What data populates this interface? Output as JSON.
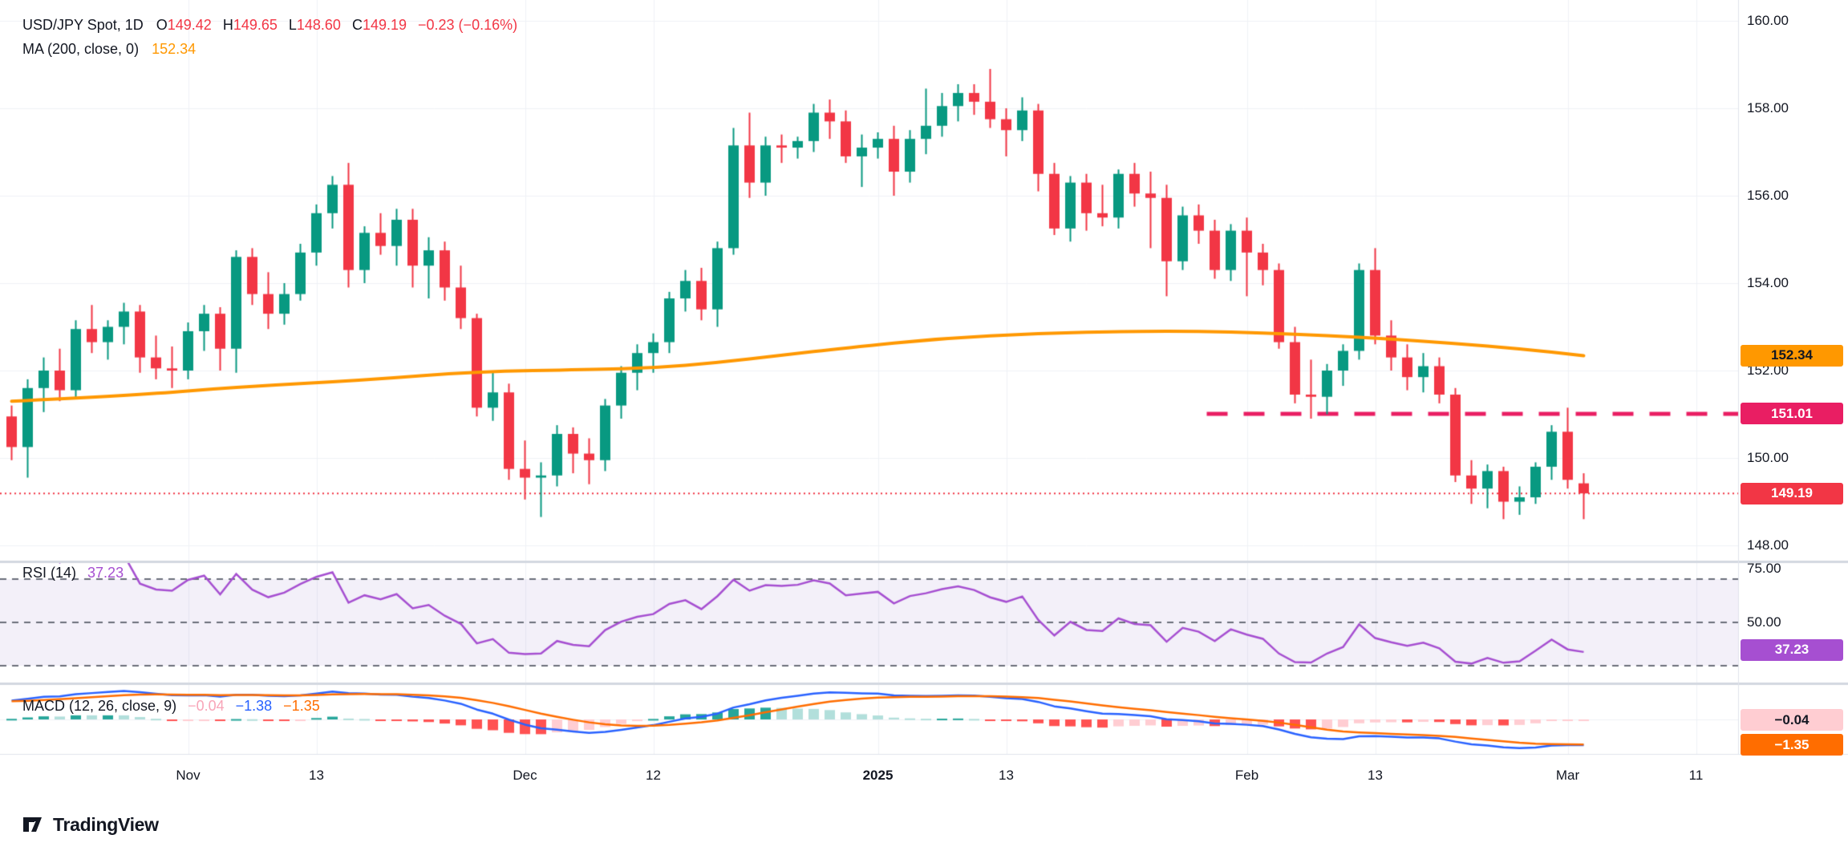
{
  "header": {
    "symbol": "USD/JPY Spot, 1D",
    "ohlc": [
      [
        "O",
        "149.42"
      ],
      [
        "H",
        "149.65"
      ],
      [
        "L",
        "148.60"
      ],
      [
        "C",
        "149.19"
      ]
    ],
    "change": "−0.23 (−0.16%)",
    "ma_label": "MA (200, close, 0)",
    "ma_value": "152.34"
  },
  "rsi_pane": {
    "label": "RSI (14)",
    "value": "37.23",
    "ticks": [
      {
        "text": "75.00",
        "v": 75
      },
      {
        "text": "50.00",
        "v": 50
      }
    ],
    "badge": {
      "text": "37.23",
      "v": 37.23,
      "bg": "#A64FD1",
      "fg": "#ffffff"
    },
    "dashed_levels": [
      70,
      50,
      30
    ],
    "band": [
      30,
      70
    ]
  },
  "macd_pane": {
    "label": "MACD (12, 26, close, 9)",
    "hist_value": "−0.04",
    "macd_value": "−1.38",
    "signal_value": "−1.35",
    "badges": [
      {
        "text": "−0.04",
        "v": -0.04,
        "bg": "#FFCDD2",
        "fg": "#131722"
      },
      {
        "text": "−1.35",
        "v": -1.35,
        "bg": "#FF6D00",
        "fg": "#ffffff"
      }
    ]
  },
  "price_axis": {
    "ticks": [
      {
        "text": "160.00",
        "v": 160
      },
      {
        "text": "158.00",
        "v": 158
      },
      {
        "text": "156.00",
        "v": 156
      },
      {
        "text": "154.00",
        "v": 154
      },
      {
        "text": "152.00",
        "v": 152
      },
      {
        "text": "150.00",
        "v": 150
      },
      {
        "text": "148.00",
        "v": 148
      }
    ],
    "badges": [
      {
        "name": "ma-value-badge",
        "text": "152.34",
        "price": 152.34,
        "bg": "#FF9800",
        "fg": "#131722"
      },
      {
        "name": "level-value-badge",
        "text": "151.01",
        "price": 151.01,
        "bg": "#E91E63",
        "fg": "#ffffff"
      },
      {
        "name": "close-value-badge",
        "text": "149.19",
        "price": 149.19,
        "bg": "#F23645",
        "fg": "#ffffff"
      }
    ]
  },
  "time_axis": {
    "ticks": [
      {
        "label": "Nov",
        "idx": 11,
        "bold": false
      },
      {
        "label": "13",
        "idx": 19,
        "bold": false
      },
      {
        "label": "Dec",
        "idx": 32,
        "bold": false
      },
      {
        "label": "12",
        "idx": 40,
        "bold": false
      },
      {
        "label": "2025",
        "idx": 54,
        "bold": true
      },
      {
        "label": "13",
        "idx": 62,
        "bold": false
      },
      {
        "label": "Feb",
        "idx": 77,
        "bold": false
      },
      {
        "label": "13",
        "idx": 85,
        "bold": false
      },
      {
        "label": "Mar",
        "idx": 97,
        "bold": false
      },
      {
        "label": "11",
        "idx": 105,
        "bold": false
      }
    ]
  },
  "footer": {
    "brand": "TradingView"
  },
  "colors": {
    "up": "#089981",
    "down": "#F23645",
    "ma": "#FF9800",
    "level": "#E91E63",
    "close_line": "#F23645",
    "rsi_line": "#A64FD1",
    "rsi_band": "rgba(126,87,194,0.09)",
    "rsi_dash": "#6A6E79",
    "macd_line": "#2962FF",
    "signal_line": "#FF6D00",
    "hist_up_grow": "#26A69A",
    "hist_up_fall": "#B2DFDB",
    "hist_dn_grow": "#FFCDD2",
    "hist_dn_fall": "#FF5252",
    "grid": "#F0F2F6",
    "separator": "#D3D8E0",
    "axis_border": "#E0E3EB"
  },
  "chart_data": {
    "type": "candlestick",
    "title": "USD/JPY Spot, 1D",
    "price_range_visible": [
      148.0,
      160.0
    ],
    "levels": {
      "resistance": 151.01,
      "resistance_start_idx": 74.5,
      "last_close": 149.19
    },
    "indicators": {
      "ma": 200,
      "rsi": 14,
      "macd": [
        12,
        26,
        9
      ]
    },
    "candles": [
      [
        150.95,
        151.2,
        149.95,
        150.25
      ],
      [
        150.25,
        151.8,
        149.55,
        151.6
      ],
      [
        151.6,
        152.3,
        151.05,
        152.0
      ],
      [
        152.0,
        152.5,
        151.3,
        151.55
      ],
      [
        151.55,
        153.15,
        151.35,
        152.95
      ],
      [
        152.95,
        153.5,
        152.4,
        152.65
      ],
      [
        152.65,
        153.15,
        152.25,
        153.0
      ],
      [
        153.0,
        153.55,
        152.6,
        153.35
      ],
      [
        153.35,
        153.5,
        151.95,
        152.3
      ],
      [
        152.3,
        152.8,
        151.8,
        152.05
      ],
      [
        152.05,
        152.55,
        151.6,
        152.0
      ],
      [
        152.0,
        153.1,
        151.8,
        152.9
      ],
      [
        152.9,
        153.5,
        152.45,
        153.3
      ],
      [
        153.3,
        153.45,
        152.0,
        152.5
      ],
      [
        152.5,
        154.75,
        151.95,
        154.6
      ],
      [
        154.6,
        154.8,
        153.5,
        153.75
      ],
      [
        153.75,
        154.25,
        152.95,
        153.3
      ],
      [
        153.3,
        154.0,
        153.05,
        153.75
      ],
      [
        153.75,
        154.9,
        153.6,
        154.7
      ],
      [
        154.7,
        155.8,
        154.4,
        155.6
      ],
      [
        155.6,
        156.45,
        155.25,
        156.25
      ],
      [
        156.25,
        156.75,
        153.9,
        154.3
      ],
      [
        154.3,
        155.3,
        154.0,
        155.15
      ],
      [
        155.15,
        155.6,
        154.65,
        154.85
      ],
      [
        154.85,
        155.7,
        154.4,
        155.45
      ],
      [
        155.45,
        155.7,
        153.9,
        154.4
      ],
      [
        154.4,
        155.05,
        153.65,
        154.75
      ],
      [
        154.75,
        154.95,
        153.6,
        153.9
      ],
      [
        153.9,
        154.4,
        152.95,
        153.2
      ],
      [
        153.2,
        153.3,
        150.95,
        151.15
      ],
      [
        151.15,
        151.95,
        150.85,
        151.5
      ],
      [
        151.5,
        151.7,
        149.5,
        149.75
      ],
      [
        149.75,
        150.4,
        149.05,
        149.55
      ],
      [
        149.55,
        149.9,
        148.65,
        149.6
      ],
      [
        149.6,
        150.75,
        149.35,
        150.55
      ],
      [
        150.55,
        150.7,
        149.65,
        150.1
      ],
      [
        150.1,
        150.45,
        149.4,
        149.95
      ],
      [
        149.95,
        151.35,
        149.7,
        151.2
      ],
      [
        151.2,
        152.1,
        150.9,
        151.95
      ],
      [
        151.95,
        152.6,
        151.55,
        152.4
      ],
      [
        152.4,
        152.85,
        151.95,
        152.65
      ],
      [
        152.65,
        153.8,
        152.4,
        153.65
      ],
      [
        153.65,
        154.3,
        153.35,
        154.05
      ],
      [
        154.05,
        154.35,
        153.15,
        153.4
      ],
      [
        153.4,
        154.95,
        153.0,
        154.8
      ],
      [
        154.8,
        157.55,
        154.65,
        157.15
      ],
      [
        157.15,
        157.9,
        155.95,
        156.3
      ],
      [
        156.3,
        157.35,
        156.0,
        157.15
      ],
      [
        157.15,
        157.4,
        156.75,
        157.1
      ],
      [
        157.1,
        157.35,
        156.85,
        157.25
      ],
      [
        157.25,
        158.1,
        157.0,
        157.9
      ],
      [
        157.9,
        158.2,
        157.3,
        157.7
      ],
      [
        157.7,
        157.95,
        156.75,
        156.9
      ],
      [
        156.9,
        157.4,
        156.2,
        157.1
      ],
      [
        157.1,
        157.45,
        156.85,
        157.3
      ],
      [
        157.3,
        157.6,
        156.0,
        156.55
      ],
      [
        156.55,
        157.5,
        156.3,
        157.3
      ],
      [
        157.3,
        158.45,
        156.95,
        157.6
      ],
      [
        157.6,
        158.35,
        157.35,
        158.05
      ],
      [
        158.05,
        158.55,
        157.7,
        158.35
      ],
      [
        158.35,
        158.55,
        157.85,
        158.15
      ],
      [
        158.15,
        158.9,
        157.55,
        157.75
      ],
      [
        157.75,
        158.0,
        156.9,
        157.5
      ],
      [
        157.5,
        158.25,
        157.25,
        157.95
      ],
      [
        157.95,
        158.1,
        156.1,
        156.5
      ],
      [
        156.5,
        156.75,
        155.1,
        155.25
      ],
      [
        155.25,
        156.45,
        154.95,
        156.3
      ],
      [
        156.3,
        156.5,
        155.2,
        155.6
      ],
      [
        155.6,
        156.25,
        155.3,
        155.5
      ],
      [
        155.5,
        156.6,
        155.25,
        156.5
      ],
      [
        156.5,
        156.75,
        155.75,
        156.05
      ],
      [
        156.05,
        156.55,
        154.8,
        155.95
      ],
      [
        155.95,
        156.25,
        153.7,
        154.5
      ],
      [
        154.5,
        155.75,
        154.3,
        155.55
      ],
      [
        155.55,
        155.8,
        154.9,
        155.2
      ],
      [
        155.2,
        155.45,
        154.1,
        154.3
      ],
      [
        154.3,
        155.35,
        154.05,
        155.2
      ],
      [
        155.2,
        155.5,
        153.7,
        154.7
      ],
      [
        154.7,
        154.9,
        153.95,
        154.3
      ],
      [
        154.3,
        154.45,
        152.5,
        152.65
      ],
      [
        152.65,
        153.0,
        151.25,
        151.45
      ],
      [
        151.45,
        152.25,
        150.9,
        151.4
      ],
      [
        151.4,
        152.15,
        151.0,
        152.0
      ],
      [
        152.0,
        152.6,
        151.65,
        152.45
      ],
      [
        152.45,
        154.45,
        152.25,
        154.3
      ],
      [
        154.3,
        154.8,
        152.6,
        152.8
      ],
      [
        152.8,
        153.15,
        152.0,
        152.3
      ],
      [
        152.3,
        152.6,
        151.55,
        151.85
      ],
      [
        151.85,
        152.4,
        151.5,
        152.1
      ],
      [
        152.1,
        152.3,
        151.25,
        151.45
      ],
      [
        151.45,
        151.6,
        149.45,
        149.6
      ],
      [
        149.6,
        149.95,
        148.95,
        149.3
      ],
      [
        149.3,
        149.85,
        148.85,
        149.7
      ],
      [
        149.7,
        149.8,
        148.6,
        149.0
      ],
      [
        149.0,
        149.35,
        148.7,
        149.1
      ],
      [
        149.1,
        149.9,
        148.95,
        149.8
      ],
      [
        149.8,
        150.75,
        149.5,
        150.6
      ],
      [
        150.6,
        151.15,
        149.3,
        149.5
      ],
      [
        149.42,
        149.65,
        148.6,
        149.19
      ]
    ],
    "ma200_anchors": [
      [
        0,
        151.3
      ],
      [
        7,
        151.42
      ],
      [
        14,
        151.62
      ],
      [
        22,
        151.78
      ],
      [
        29,
        151.98
      ],
      [
        36,
        152.02
      ],
      [
        40,
        152.06
      ],
      [
        44,
        152.18
      ],
      [
        48,
        152.35
      ],
      [
        52,
        152.52
      ],
      [
        58,
        152.74
      ],
      [
        64,
        152.85
      ],
      [
        70,
        152.9
      ],
      [
        74,
        152.9
      ],
      [
        78,
        152.86
      ],
      [
        82,
        152.8
      ],
      [
        86,
        152.72
      ],
      [
        90,
        152.62
      ],
      [
        94,
        152.5
      ],
      [
        98,
        152.34
      ]
    ]
  }
}
